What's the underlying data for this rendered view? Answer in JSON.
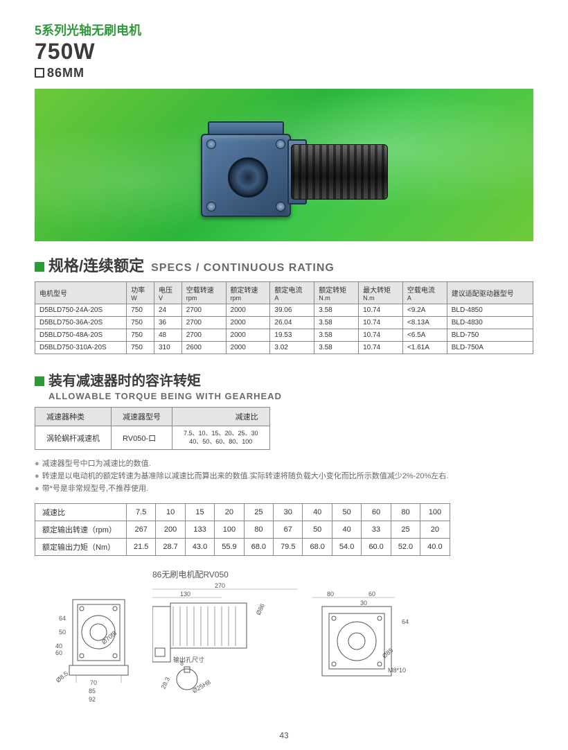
{
  "header": {
    "series_prefix": "5",
    "series_text": "系列光轴无刷电机",
    "wattage": "750W",
    "size": "86MM"
  },
  "section_specs": {
    "title_cn": "规格/连续额定",
    "title_en": "SPECS / CONTINUOUS RATING",
    "columns": [
      {
        "cn": "电机型号",
        "en": ""
      },
      {
        "cn": "功率",
        "en": "W"
      },
      {
        "cn": "电压",
        "en": "V"
      },
      {
        "cn": "空载转速",
        "en": "rpm"
      },
      {
        "cn": "额定转速",
        "en": "rpm"
      },
      {
        "cn": "额定电流",
        "en": "A"
      },
      {
        "cn": "额定转矩",
        "en": "N.m"
      },
      {
        "cn": "最大转矩",
        "en": "N.m"
      },
      {
        "cn": "空载电流",
        "en": "A"
      },
      {
        "cn": "建议适配驱动器型号",
        "en": ""
      }
    ],
    "rows": [
      [
        "D5BLD750-24A-20S",
        "750",
        "24",
        "2700",
        "2000",
        "39.06",
        "3.58",
        "10.74",
        "<9.2A",
        "BLD-4850"
      ],
      [
        "D5BLD750-36A-20S",
        "750",
        "36",
        "2700",
        "2000",
        "26.04",
        "3.58",
        "10.74",
        "<8.13A",
        "BLD-4830"
      ],
      [
        "D5BLD750-48A-20S",
        "750",
        "48",
        "2700",
        "2000",
        "19.53",
        "3.58",
        "10.74",
        "<6.5A",
        "BLD-750"
      ],
      [
        "D5BLD750-310A-20S",
        "750",
        "310",
        "2600",
        "2000",
        "3.02",
        "3.58",
        "10.74",
        "<1.61A",
        "BLD-750A"
      ]
    ]
  },
  "section_torque": {
    "title_cn": "装有减速器时的容许转矩",
    "title_en": "ALLOWABLE TORQUE BEING WITH GEARHEAD",
    "gear_columns": [
      "减速器种类",
      "减速器型号",
      "减速比"
    ],
    "gear_row": {
      "type": "涡轮蜗杆减速机",
      "model": "RV050-口",
      "ratios_line1": "7.5、10、15、20、25、30",
      "ratios_line2": "40、50、60、80、100"
    },
    "notes": [
      "减速器型号中口为减速比的数值.",
      "转速是以电动机的额定转速为基准除以减速比而算出来的数值.实际转速将随负载大小变化而比所示数值减少2%-20%左右.",
      "带*号是非常规型号,不推荐使用."
    ],
    "torque_table": {
      "row_labels": [
        "减速比",
        "额定输出转速（rpm）",
        "额定输出力矩（Nm）"
      ],
      "ratios": [
        "7.5",
        "10",
        "15",
        "20",
        "25",
        "30",
        "40",
        "50",
        "60",
        "80",
        "100"
      ],
      "rpm": [
        "267",
        "200",
        "133",
        "100",
        "80",
        "67",
        "50",
        "40",
        "33",
        "25",
        "20"
      ],
      "nm": [
        "21.5",
        "28.7",
        "43.0",
        "55.9",
        "68.0",
        "79.5",
        "68.0",
        "54.0",
        "60.0",
        "52.0",
        "40.0"
      ]
    }
  },
  "drawing": {
    "title": "86无刷电机配RV050",
    "dims": {
      "top_total": "270",
      "top1": "130",
      "top2": "80",
      "top3": "60",
      "top_offset": "30",
      "left_h1": "64",
      "left_h2": "50",
      "left_h3": "40",
      "left_h4": "60",
      "left_bottom": "70",
      "left_w": "85",
      "left_w2": "92",
      "hole": "Ø8.5",
      "bore": "Ø70f8",
      "flange": "Ø86",
      "out_hole_label": "输出孔尺寸",
      "out_k": "8",
      "out_d": "28.3",
      "out_ring": "Ø25H8",
      "right_outer": "Ø85",
      "right_thread": "M8*10",
      "side": "64"
    }
  },
  "page_number": "43"
}
